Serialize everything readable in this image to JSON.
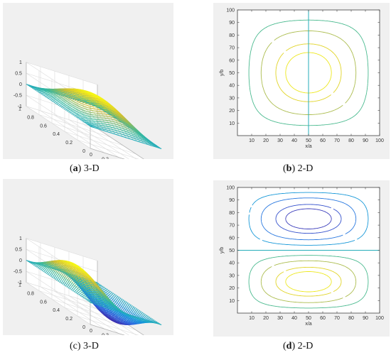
{
  "chart_data": [
    {
      "type": "surface",
      "mode": "sin(pi x) sin(pi y)",
      "z_ticks": [
        "1",
        "0.5",
        "0",
        "-0.5",
        "-1"
      ],
      "x_ticks": [
        "0",
        "0.2",
        "0.4",
        "0.6",
        "0.8",
        "1"
      ],
      "y_ticks": [
        "0",
        "0.2",
        "0.4",
        "0.6",
        "0.8",
        "1"
      ],
      "zlim": [
        -1,
        1
      ],
      "caption_letter": "a",
      "caption_text": " 3-D",
      "colormap": "parula"
    },
    {
      "type": "contour",
      "mode": "sin(pi x) sin(pi y)",
      "xlabel": "x/a",
      "ylabel": "y/b",
      "x_ticks": [
        "10",
        "20",
        "30",
        "40",
        "50",
        "60",
        "70",
        "80",
        "90",
        "100"
      ],
      "y_ticks": [
        "10",
        "20",
        "30",
        "40",
        "50",
        "60",
        "70",
        "80",
        "90",
        "100"
      ],
      "xlim": [
        0,
        100
      ],
      "ylim": [
        0,
        100
      ],
      "caption_letter": "b",
      "caption_text": " 2-D"
    },
    {
      "type": "surface",
      "mode": "sin(pi y) sin(2 pi x)",
      "z_ticks": [
        "1",
        "0.5",
        "0",
        "-0.5",
        "-1"
      ],
      "x_ticks": [
        "0",
        "0.2",
        "0.4",
        "0.6",
        "0.8",
        "1"
      ],
      "y_ticks": [
        "0",
        "0.2",
        "0.4",
        "0.6",
        "0.8",
        "1"
      ],
      "zlim": [
        -1,
        1
      ],
      "caption_letter": "",
      "caption_text": "(c) 3-D",
      "colormap": "parula"
    },
    {
      "type": "contour",
      "mode": "sin(pi x) sin(2 pi y)",
      "xlabel": "x/a",
      "ylabel": "y/b",
      "x_ticks": [
        "10",
        "20",
        "30",
        "40",
        "50",
        "60",
        "70",
        "80",
        "90",
        "100"
      ],
      "y_ticks": [
        "10",
        "20",
        "30",
        "40",
        "50",
        "60",
        "70",
        "80",
        "90",
        "100"
      ],
      "xlim": [
        0,
        100
      ],
      "ylim": [
        0,
        100
      ],
      "caption_letter": "d",
      "caption_text": " 2-D"
    }
  ],
  "colors": {
    "panel_bg": "#f0f0f0",
    "axes_bg": "#ffffff",
    "axis_line": "#404040",
    "grid": "#dcdcdc",
    "tick_text": "#333333"
  }
}
